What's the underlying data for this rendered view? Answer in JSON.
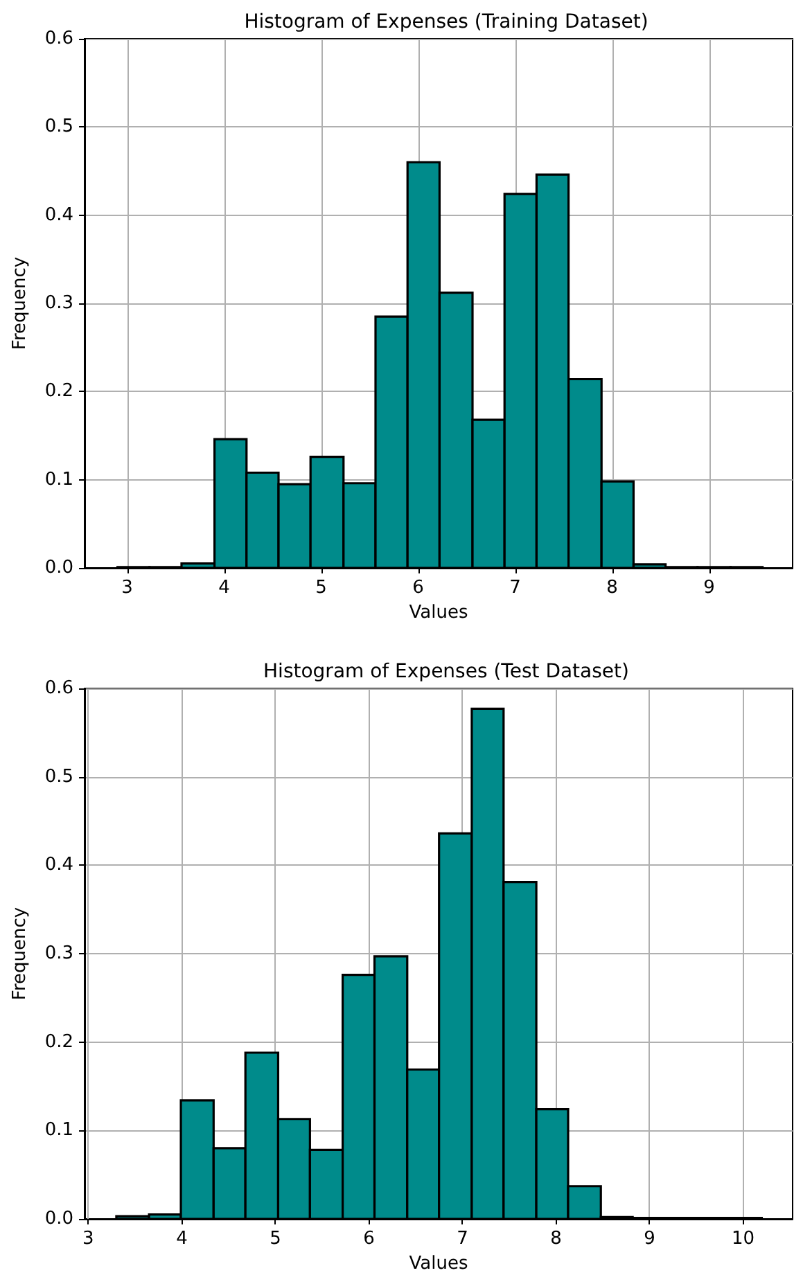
{
  "chart_data": [
    {
      "type": "histogram",
      "title": "Histogram of Expenses (Training Dataset)",
      "xlabel": "Values",
      "ylabel": "Frequency",
      "color": "#008b8b",
      "bins": [
        2.9,
        3.23,
        3.56,
        3.9,
        4.23,
        4.56,
        4.89,
        5.23,
        5.56,
        5.89,
        6.22,
        6.56,
        6.89,
        7.22,
        7.55,
        7.89,
        8.22,
        8.55,
        8.88,
        9.22,
        9.55
      ],
      "values": [
        0.001,
        0.001,
        0.005,
        0.146,
        0.108,
        0.095,
        0.126,
        0.096,
        0.285,
        0.46,
        0.312,
        0.168,
        0.424,
        0.446,
        0.214,
        0.098,
        0.004,
        0.001,
        0.001,
        0.001
      ],
      "xlim": [
        2.56,
        9.86
      ],
      "xticks": [
        3,
        4,
        5,
        6,
        7,
        8,
        9
      ],
      "ylim": [
        0,
        0.6
      ],
      "yticks": [
        {
          "value": 0,
          "label": "0.0"
        },
        {
          "value": 0.1,
          "label": "0.1"
        },
        {
          "value": 0.2,
          "label": "0.2"
        },
        {
          "value": 0.3,
          "label": "0.3"
        },
        {
          "value": 0.4,
          "label": "0.4"
        },
        {
          "value": 0.5,
          "label": "0.5"
        },
        {
          "value": 0.6,
          "label": "0.6"
        }
      ],
      "grid": true
    },
    {
      "type": "histogram",
      "title": "Histogram of Expenses (Test Dataset)",
      "xlabel": "Values",
      "ylabel": "Frequency",
      "color": "#008b8b",
      "bins": [
        3.3,
        3.65,
        3.99,
        4.34,
        4.68,
        5.03,
        5.37,
        5.72,
        6.06,
        6.41,
        6.75,
        7.1,
        7.44,
        7.79,
        8.13,
        8.48,
        8.82,
        9.17,
        9.51,
        9.86,
        10.2
      ],
      "values": [
        0.003,
        0.005,
        0.134,
        0.08,
        0.188,
        0.113,
        0.078,
        0.276,
        0.297,
        0.169,
        0.436,
        0.577,
        0.381,
        0.124,
        0.037,
        0.002,
        0.001,
        0.001,
        0.001,
        0.001
      ],
      "xlim": [
        2.96,
        10.53
      ],
      "xticks": [
        3,
        4,
        5,
        6,
        7,
        8,
        9,
        10
      ],
      "ylim": [
        0,
        0.6
      ],
      "yticks": [
        {
          "value": 0,
          "label": "0.0"
        },
        {
          "value": 0.1,
          "label": "0.1"
        },
        {
          "value": 0.2,
          "label": "0.2"
        },
        {
          "value": 0.3,
          "label": "0.3"
        },
        {
          "value": 0.4,
          "label": "0.4"
        },
        {
          "value": 0.5,
          "label": "0.5"
        },
        {
          "value": 0.6,
          "label": "0.6"
        }
      ],
      "grid": true
    }
  ]
}
